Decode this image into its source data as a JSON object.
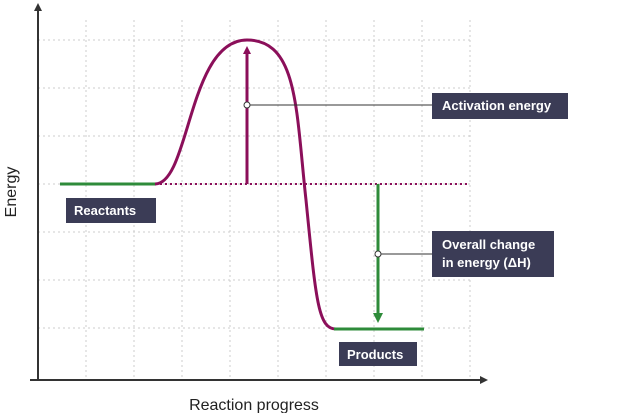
{
  "diagram": {
    "xlabel": "Reaction progress",
    "ylabel": "Energy",
    "labels": {
      "reactants": "Reactants",
      "products": "Products",
      "activation_energy": "Activation energy",
      "overall_change_line1": "Overall change",
      "overall_change_line2": "in energy (ΔH)"
    },
    "colors": {
      "curve": "#8b0f5a",
      "level": "#2e8b3a",
      "label_background": "#3b3c56",
      "grid": "#cccccc",
      "axis": "#333333"
    }
  }
}
